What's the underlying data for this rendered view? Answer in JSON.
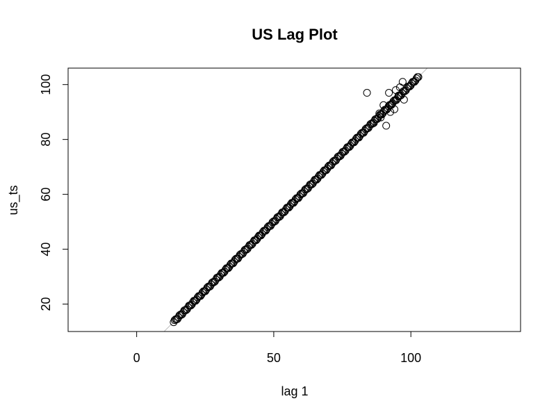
{
  "chart_data": {
    "type": "scatter",
    "title": "US Lag Plot",
    "xlabel": "lag 1",
    "ylabel": "us_ts",
    "xlim": [
      -25,
      140
    ],
    "ylim": [
      10,
      106
    ],
    "xticks": [
      0,
      50,
      100
    ],
    "yticks": [
      20,
      40,
      60,
      80,
      100
    ],
    "grid": false,
    "reference_line": {
      "slope": 1,
      "intercept": 0,
      "style": "solid",
      "color": "#bdbdbd"
    },
    "series": [
      {
        "marker": "open-circle",
        "color": "#000000",
        "points": {
          "diagonal": {
            "from": 13.5,
            "to": 103,
            "step": 0.35
          },
          "outliers": [
            [
              84,
              97
            ],
            [
              88.5,
              89.5
            ],
            [
              90,
              92.5
            ],
            [
              91,
              85
            ],
            [
              92,
              97
            ],
            [
              93,
              93
            ],
            [
              94,
              91
            ],
            [
              94.5,
              98
            ],
            [
              95.5,
              96
            ],
            [
              97,
              101
            ],
            [
              97.5,
              94.5
            ],
            [
              86.5,
              86
            ],
            [
              89,
              88
            ],
            [
              92.5,
              90
            ],
            [
              96,
              99
            ]
          ]
        }
      }
    ]
  }
}
